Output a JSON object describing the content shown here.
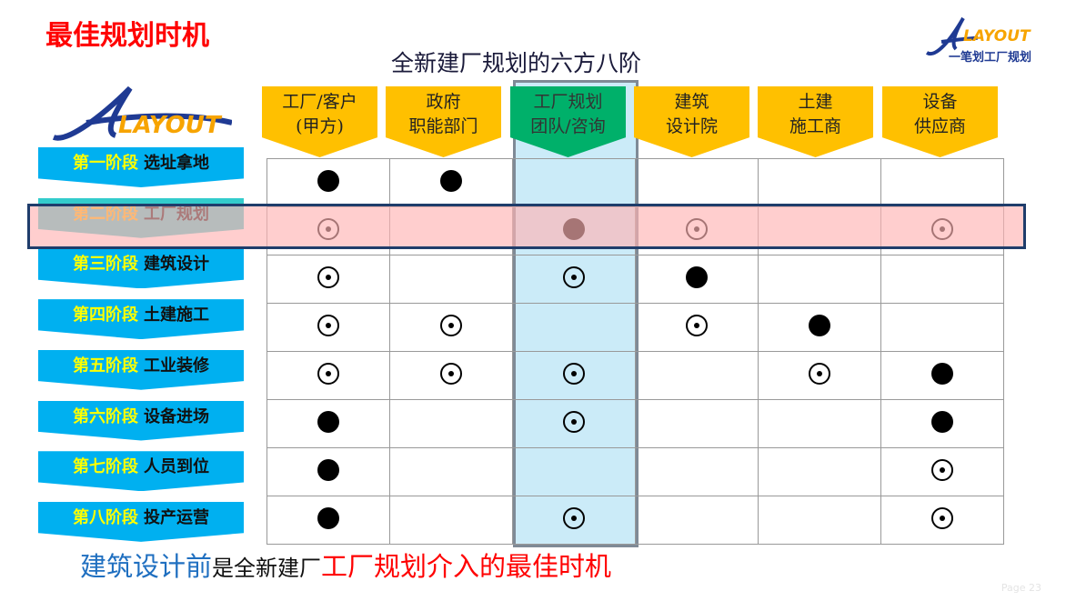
{
  "corner_title": "最佳规划时机",
  "main_title": "全新建厂规划的六方八阶",
  "logo": {
    "brand": "LAYOUT",
    "slogan": "一笔划工厂规划"
  },
  "colors": {
    "header_yellow": "#ffc000",
    "header_green": "#00b06a",
    "stage_blue": "#00b0f0",
    "stage_active": "#33cccc",
    "highlight_row": "#ffcccc",
    "highlight_col": "#c6e9f7",
    "red": "#ff0000",
    "blue_text": "#1f6fc0"
  },
  "columns": [
    {
      "line1": "工厂/客户",
      "line2": "(甲方)"
    },
    {
      "line1": "政府",
      "line2": "职能部门"
    },
    {
      "line1": "工厂规划",
      "line2": "团队/咨询"
    },
    {
      "line1": "建筑",
      "line2": "设计院"
    },
    {
      "line1": "土建",
      "line2": "施工商"
    },
    {
      "line1": "设备",
      "line2": "供应商"
    }
  ],
  "stages": [
    {
      "num": "第一阶段",
      "name": "选址拿地"
    },
    {
      "num": "第二阶段",
      "name": "工厂规划"
    },
    {
      "num": "第三阶段",
      "name": "建筑设计"
    },
    {
      "num": "第四阶段",
      "name": "土建施工"
    },
    {
      "num": "第五阶段",
      "name": "工业装修"
    },
    {
      "num": "第六阶段",
      "name": "设备进场"
    },
    {
      "num": "第七阶段",
      "name": "人员到位"
    },
    {
      "num": "第八阶段",
      "name": "投产运营"
    }
  ],
  "legend_marks": {
    "f": "filled-circle",
    "d": "dotted-circle"
  },
  "matrix": [
    [
      "f",
      "f",
      "",
      "",
      "",
      ""
    ],
    [
      "d",
      "",
      "f",
      "d",
      "",
      "d"
    ],
    [
      "d",
      "",
      "d",
      "f",
      "",
      ""
    ],
    [
      "d",
      "d",
      "",
      "d",
      "f",
      ""
    ],
    [
      "d",
      "d",
      "d",
      "",
      "d",
      "f"
    ],
    [
      "f",
      "",
      "d",
      "",
      "",
      "f"
    ],
    [
      "f",
      "",
      "",
      "",
      "",
      "d"
    ],
    [
      "f",
      "",
      "d",
      "",
      "",
      "d"
    ]
  ],
  "highlighted_stage": 2,
  "highlighted_column": 3,
  "bottom": {
    "part1": "建筑设计前",
    "part2": "是全新建厂",
    "part3": "工厂规划介入的最佳时机"
  },
  "page": "Page 23"
}
